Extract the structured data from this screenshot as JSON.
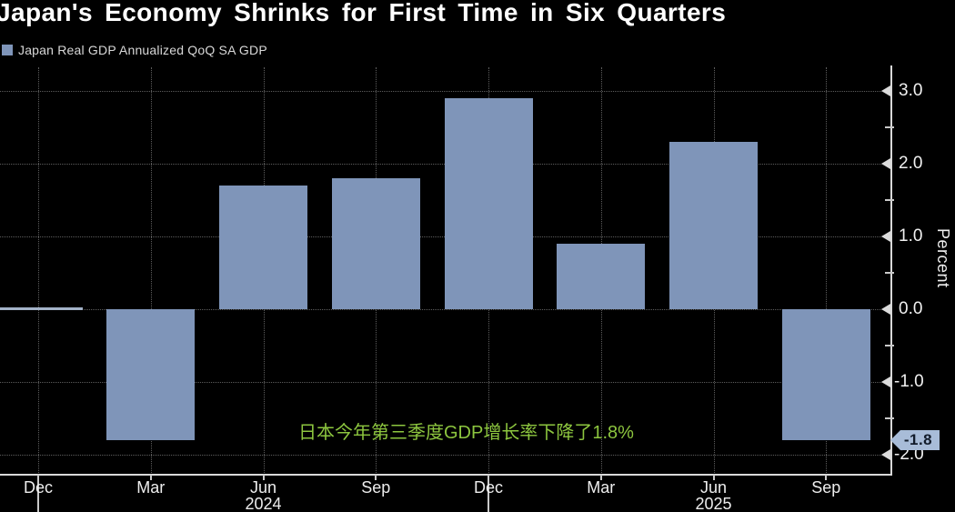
{
  "header": {
    "title": "Japan's Economy Shrinks for First Time in Six Quarters"
  },
  "legend": {
    "label": "Japan Real GDP Annualized QoQ SA GDP",
    "marker_color": "#7f95b9"
  },
  "annotation": {
    "text": "日本今年第三季度GDP增长率下降了1.8%",
    "color": "#8dc63f"
  },
  "value_badge": {
    "text": "-1.8",
    "value": -1.8,
    "bg_color": "#a8bcd8",
    "text_color": "#121c2b"
  },
  "y_axis": {
    "label": "Percent",
    "ticks": [
      {
        "value": 3.0,
        "label": "3.0"
      },
      {
        "value": 2.0,
        "label": "2.0"
      },
      {
        "value": 1.0,
        "label": "1.0"
      },
      {
        "value": 0.0,
        "label": "0.0"
      },
      {
        "value": -1.0,
        "label": "-1.0"
      },
      {
        "value": -2.0,
        "label": "-2.0"
      }
    ],
    "minor_ticks": [
      2.5,
      1.5,
      0.5,
      -0.5,
      -1.5
    ]
  },
  "x_axis": {
    "months": [
      "Dec",
      "Mar",
      "Jun",
      "Sep",
      "Dec",
      "Mar",
      "Jun",
      "Sep"
    ],
    "years": [
      {
        "label": "2024",
        "tick_index": 2
      },
      {
        "label": "2025",
        "tick_index": 6
      }
    ],
    "year_separator_indices": [
      0,
      4
    ]
  },
  "chart_data": {
    "type": "bar",
    "title": "Japan's Economy Shrinks for First Time in Six Quarters",
    "series_name": "Japan Real GDP Annualized QoQ SA GDP",
    "categories": [
      "Dec 2023",
      "Mar 2024",
      "Jun 2024",
      "Sep 2024",
      "Dec 2024",
      "Mar 2025",
      "Jun 2025",
      "Sep 2025"
    ],
    "values": [
      0.0,
      -1.8,
      1.7,
      1.8,
      2.9,
      0.9,
      2.3,
      -1.8
    ],
    "xlabel": "",
    "ylabel": "Percent",
    "ylim": [
      -2.3,
      3.4
    ],
    "grid": true,
    "legend_position": "top-left",
    "bar_color": "#7f95b9",
    "background_color": "#000000",
    "annotation_text": "日本今年第三季度GDP增长率下降了1.8%",
    "last_value_label": "-1.8"
  }
}
